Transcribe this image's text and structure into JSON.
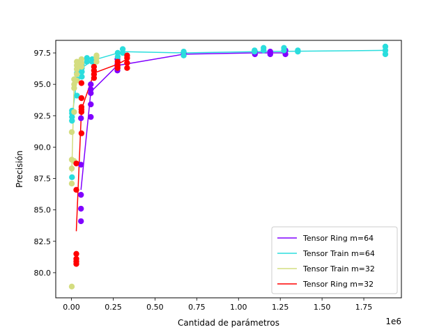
{
  "chart_data": {
    "type": "scatter",
    "title": "",
    "xlabel": "Cantidad de parámetros",
    "ylabel": "Precisión",
    "x_offset_label": "1e6",
    "x_scale": 1000000,
    "xlim": [
      -0.094,
      1.975
    ],
    "ylim": [
      78.0,
      98.5
    ],
    "xticks": [
      0.0,
      0.25,
      0.5,
      0.75,
      1.0,
      1.25,
      1.5,
      1.75
    ],
    "xtick_labels": [
      "0.00",
      "0.25",
      "0.50",
      "0.75",
      "1.00",
      "1.25",
      "1.50",
      "1.75"
    ],
    "yticks": [
      80.0,
      82.5,
      85.0,
      87.5,
      90.0,
      92.5,
      95.0,
      97.5
    ],
    "ytick_labels": [
      "80.0",
      "82.5",
      "85.0",
      "87.5",
      "90.0",
      "92.5",
      "95.0",
      "97.5"
    ],
    "grid": false,
    "legend_position": "lower-right",
    "series": [
      {
        "name": "Tensor Ring m=64",
        "color": "#8000ff",
        "line": [
          [
            0.057,
            86.6
          ],
          [
            0.116,
            94.4
          ],
          [
            0.275,
            96.5
          ],
          [
            0.672,
            97.4
          ],
          [
            1.098,
            97.5
          ],
          [
            1.281,
            97.5
          ]
        ],
        "points": [
          [
            0.057,
            92.3
          ],
          [
            0.057,
            88.6
          ],
          [
            0.057,
            86.2
          ],
          [
            0.057,
            85.1
          ],
          [
            0.057,
            84.1
          ],
          [
            0.116,
            95.0
          ],
          [
            0.116,
            94.6
          ],
          [
            0.116,
            94.3
          ],
          [
            0.116,
            93.4
          ],
          [
            0.116,
            92.4
          ],
          [
            0.275,
            97.0
          ],
          [
            0.275,
            96.6
          ],
          [
            0.275,
            96.4
          ],
          [
            0.275,
            96.1
          ],
          [
            0.672,
            97.5
          ],
          [
            0.672,
            97.4
          ],
          [
            1.098,
            97.6
          ],
          [
            1.098,
            97.4
          ],
          [
            1.19,
            97.6
          ],
          [
            1.19,
            97.4
          ],
          [
            1.281,
            97.7
          ],
          [
            1.281,
            97.4
          ]
        ]
      },
      {
        "name": "Tensor Train m=64",
        "color": "#2adddd",
        "line": [
          [
            0.003,
            92.3
          ],
          [
            0.033,
            95.5
          ],
          [
            0.062,
            96.3
          ],
          [
            0.124,
            96.9
          ],
          [
            0.307,
            97.6
          ],
          [
            0.672,
            97.5
          ],
          [
            1.096,
            97.6
          ],
          [
            1.879,
            97.7
          ]
        ],
        "points": [
          [
            0.003,
            92.9
          ],
          [
            0.003,
            92.7
          ],
          [
            0.003,
            92.4
          ],
          [
            0.003,
            92.1
          ],
          [
            0.003,
            87.6
          ],
          [
            0.033,
            96.5
          ],
          [
            0.033,
            96.2
          ],
          [
            0.033,
            95.9
          ],
          [
            0.033,
            95.4
          ],
          [
            0.033,
            94.1
          ],
          [
            0.062,
            96.6
          ],
          [
            0.062,
            96.3
          ],
          [
            0.062,
            96.0
          ],
          [
            0.062,
            95.6
          ],
          [
            0.093,
            97.1
          ],
          [
            0.093,
            96.8
          ],
          [
            0.124,
            97.0
          ],
          [
            0.124,
            96.8
          ],
          [
            0.277,
            97.5
          ],
          [
            0.277,
            97.2
          ],
          [
            0.307,
            97.8
          ],
          [
            0.307,
            97.5
          ],
          [
            0.672,
            97.6
          ],
          [
            0.672,
            97.3
          ],
          [
            1.096,
            97.7
          ],
          [
            1.096,
            97.6
          ],
          [
            1.15,
            97.9
          ],
          [
            1.15,
            97.7
          ],
          [
            1.272,
            97.9
          ],
          [
            1.272,
            97.7
          ],
          [
            1.355,
            97.7
          ],
          [
            1.355,
            97.6
          ],
          [
            1.879,
            98.0
          ],
          [
            1.879,
            97.7
          ],
          [
            1.879,
            97.4
          ]
        ]
      },
      {
        "name": "Tensor Train m=32",
        "color": "#d4dd80",
        "line": [
          [
            0.002,
            88.0
          ],
          [
            0.016,
            95.2
          ],
          [
            0.032,
            96.6
          ],
          [
            0.06,
            96.9
          ],
          [
            0.15,
            97.2
          ]
        ],
        "points": [
          [
            0.002,
            91.2
          ],
          [
            0.002,
            89.0
          ],
          [
            0.002,
            88.3
          ],
          [
            0.002,
            87.1
          ],
          [
            0.002,
            78.9
          ],
          [
            0.016,
            95.4
          ],
          [
            0.016,
            95.0
          ],
          [
            0.016,
            94.7
          ],
          [
            0.016,
            92.8
          ],
          [
            0.016,
            88.9
          ],
          [
            0.032,
            96.8
          ],
          [
            0.032,
            96.5
          ],
          [
            0.032,
            96.2
          ],
          [
            0.032,
            95.8
          ],
          [
            0.032,
            95.3
          ],
          [
            0.06,
            97.0
          ],
          [
            0.06,
            96.7
          ],
          [
            0.06,
            96.4
          ],
          [
            0.15,
            97.3
          ],
          [
            0.15,
            97.1
          ],
          [
            0.15,
            96.8
          ]
        ]
      },
      {
        "name": "Tensor Ring m=32",
        "color": "#ff0000",
        "line": [
          [
            0.029,
            83.3
          ],
          [
            0.06,
            93.0
          ],
          [
            0.135,
            95.9
          ],
          [
            0.276,
            96.6
          ],
          [
            0.333,
            97.0
          ]
        ],
        "points": [
          [
            0.029,
            88.7
          ],
          [
            0.029,
            86.6
          ],
          [
            0.029,
            81.5
          ],
          [
            0.029,
            81.1
          ],
          [
            0.029,
            80.9
          ],
          [
            0.029,
            80.7
          ],
          [
            0.06,
            95.1
          ],
          [
            0.06,
            93.9
          ],
          [
            0.06,
            93.2
          ],
          [
            0.06,
            93.0
          ],
          [
            0.06,
            92.8
          ],
          [
            0.06,
            91.1
          ],
          [
            0.135,
            96.4
          ],
          [
            0.135,
            96.1
          ],
          [
            0.135,
            95.8
          ],
          [
            0.135,
            95.5
          ],
          [
            0.276,
            96.8
          ],
          [
            0.276,
            96.5
          ],
          [
            0.276,
            96.3
          ],
          [
            0.333,
            97.3
          ],
          [
            0.333,
            97.1
          ],
          [
            0.333,
            96.7
          ],
          [
            0.333,
            96.3
          ]
        ]
      }
    ]
  }
}
